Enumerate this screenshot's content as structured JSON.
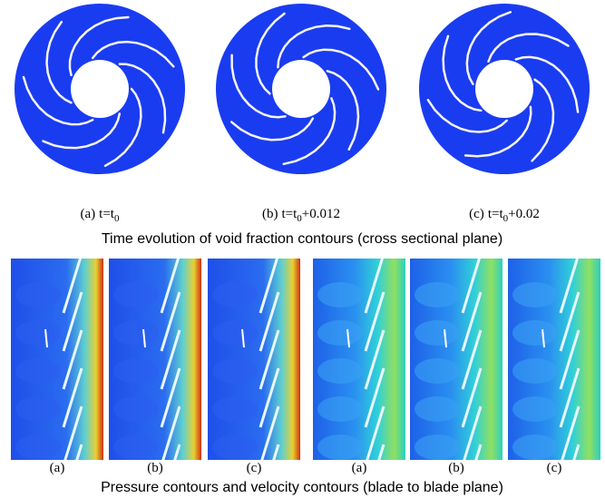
{
  "top_figure": {
    "panels": [
      {
        "label": "(a)",
        "expr": "t=t",
        "sub": "0"
      },
      {
        "label": "(b)",
        "expr": "t=t",
        "sub": "0",
        "suffix": "+0.012"
      },
      {
        "label": "(c)",
        "expr": "t=t",
        "sub": "0",
        "suffix": "+0.02"
      }
    ],
    "caption": "Time evolution of void fraction contours (cross sectional plane)"
  },
  "bottom_figure": {
    "panel_labels": [
      "(a)",
      "(b)",
      "(c)",
      "(a)",
      "(b)",
      "(c)"
    ],
    "caption": "Pressure contours and velocity contours (blade to blade plane)"
  }
}
